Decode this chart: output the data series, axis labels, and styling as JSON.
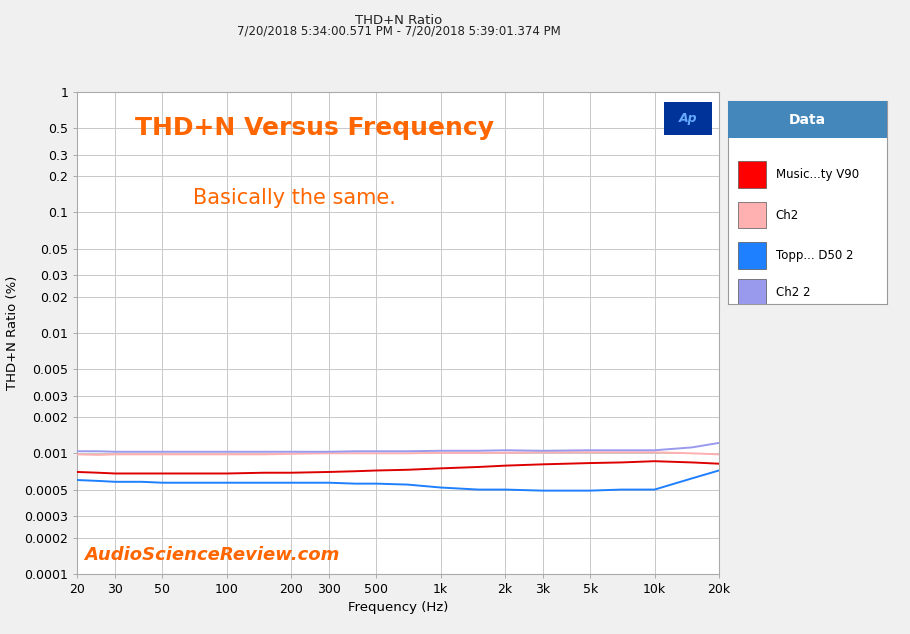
{
  "title_top": "THD+N Ratio",
  "title_date": "7/20/2018 5:34:00.571 PM - 7/20/2018 5:39:01.374 PM",
  "main_title": "THD+N Versus Frequency",
  "annotation": "Basically the same.",
  "watermark": "AudioScienceReview.com",
  "xlabel": "Frequency (Hz)",
  "ylabel": "THD+N Ratio (%)",
  "legend_title": "Data",
  "legend_entries": [
    "Music...ty V90",
    "Ch2",
    "Topp... D50 2",
    "Ch2 2"
  ],
  "legend_colors": [
    "#ff0000",
    "#ffb0b0",
    "#1e7fff",
    "#9999ee"
  ],
  "bg_color": "#f0f0f0",
  "plot_bg": "#ffffff",
  "grid_color": "#c8c8c8",
  "title_color": "#ff6600",
  "annotation_color": "#ff6600",
  "watermark_color": "#ff6600",
  "xmin": 20,
  "xmax": 20000,
  "ymin": 0.0001,
  "ymax": 1.0,
  "x_ticks": [
    20,
    30,
    50,
    100,
    200,
    300,
    500,
    1000,
    2000,
    3000,
    5000,
    10000,
    20000
  ],
  "x_tick_labels": [
    "20",
    "30",
    "50",
    "100",
    "200",
    "300",
    "500",
    "1k",
    "2k",
    "3k",
    "5k",
    "10k",
    "20k"
  ],
  "y_ticks": [
    0.0001,
    0.0002,
    0.0003,
    0.0005,
    0.001,
    0.002,
    0.003,
    0.005,
    0.01,
    0.02,
    0.03,
    0.05,
    0.1,
    0.2,
    0.3,
    0.5,
    1.0
  ],
  "y_tick_labels": [
    "0.0001",
    "0.0002",
    "0.0003",
    "0.0005",
    "0.001",
    "0.002",
    "0.003",
    "0.005",
    "0.01",
    "0.02",
    "0.03",
    "0.05",
    "0.1",
    "0.2",
    "0.3",
    "0.5",
    "1"
  ],
  "freqs_detail": [
    20,
    25,
    30,
    40,
    50,
    70,
    100,
    150,
    200,
    300,
    400,
    500,
    700,
    1000,
    1500,
    2000,
    3000,
    5000,
    7000,
    10000,
    15000,
    20000
  ],
  "line_red": [
    0.0007,
    0.00069,
    0.00068,
    0.00068,
    0.00068,
    0.00068,
    0.00068,
    0.00069,
    0.00069,
    0.0007,
    0.00071,
    0.00072,
    0.00073,
    0.00075,
    0.00077,
    0.00079,
    0.00081,
    0.00083,
    0.00084,
    0.00086,
    0.00084,
    0.00082
  ],
  "line_pink": [
    0.00098,
    0.00097,
    0.00098,
    0.00098,
    0.00098,
    0.00098,
    0.00098,
    0.00098,
    0.00099,
    0.001,
    0.001,
    0.001,
    0.001,
    0.00101,
    0.00101,
    0.00101,
    0.00102,
    0.00102,
    0.00102,
    0.00102,
    0.001,
    0.00098
  ],
  "line_blue": [
    0.0006,
    0.00059,
    0.00058,
    0.00058,
    0.00057,
    0.00057,
    0.00057,
    0.00057,
    0.00057,
    0.00057,
    0.00056,
    0.00056,
    0.00055,
    0.00052,
    0.0005,
    0.0005,
    0.00049,
    0.00049,
    0.0005,
    0.0005,
    0.00062,
    0.00072
  ],
  "line_purple": [
    0.00104,
    0.00104,
    0.00103,
    0.00103,
    0.00103,
    0.00103,
    0.00103,
    0.00103,
    0.00103,
    0.00103,
    0.00104,
    0.00104,
    0.00104,
    0.00105,
    0.00105,
    0.00106,
    0.00105,
    0.00106,
    0.00106,
    0.00106,
    0.00112,
    0.00122
  ]
}
